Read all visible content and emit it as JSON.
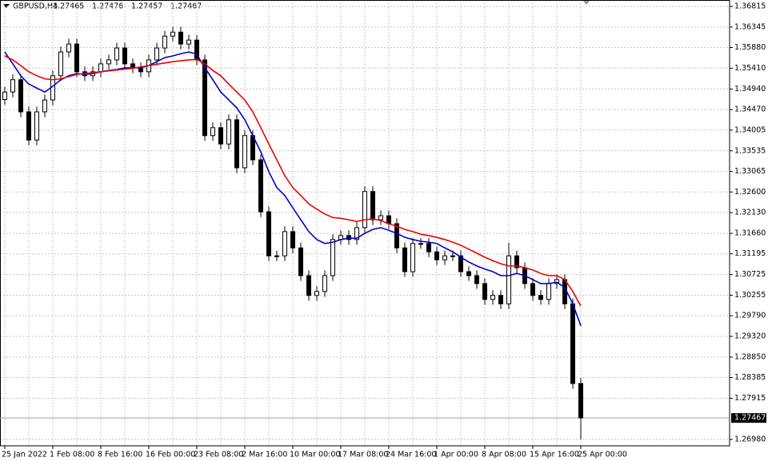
{
  "chart_data": {
    "type": "candlestick",
    "symbol": "GBPUSD,H4",
    "header_values": [
      "1.27465",
      "1.27476",
      "1.27457",
      "1.27467"
    ],
    "categories": [
      "25 Jan 2022",
      null,
      null,
      null,
      null,
      null,
      "1 Feb 08:00",
      null,
      null,
      null,
      null,
      null,
      "8 Feb 16:00",
      null,
      null,
      null,
      null,
      null,
      "16 Feb 00:00",
      null,
      null,
      null,
      null,
      null,
      "23 Feb 08:00",
      null,
      null,
      null,
      null,
      null,
      "2 Mar 16:00",
      null,
      null,
      null,
      null,
      null,
      "10 Mar 00:00",
      null,
      null,
      null,
      null,
      null,
      "17 Mar 08:00",
      null,
      null,
      null,
      null,
      null,
      "24 Mar 16:00",
      null,
      null,
      null,
      null,
      null,
      "1 Apr 00:00",
      null,
      null,
      null,
      null,
      null,
      "8 Apr 08:00",
      null,
      null,
      null,
      null,
      null,
      "15 Apr 16:00",
      null,
      null,
      null,
      null,
      null,
      "25 Apr 00:00"
    ],
    "open": [
      1.347,
      1.3487,
      1.3515,
      1.3442,
      1.3378,
      1.3442,
      1.3469,
      1.3524,
      1.3578,
      1.3596,
      1.3533,
      1.3524,
      1.3533,
      1.3551,
      1.356,
      1.3587,
      1.3551,
      1.3542,
      1.3533,
      1.356,
      1.3587,
      1.3614,
      1.3623,
      1.3596,
      1.3605,
      1.356,
      1.3388,
      1.3406,
      1.3369,
      1.3424,
      1.3315,
      1.3388,
      1.3333,
      1.3215,
      1.3115,
      1.3115,
      1.317,
      1.3133,
      1.307,
      1.3025,
      1.3034,
      1.307,
      1.3152,
      1.3161,
      1.3152,
      1.3179,
      1.3261,
      1.3197,
      1.3206,
      1.3188,
      1.3133,
      1.3079,
      1.3143,
      1.3143,
      1.3124,
      1.3106,
      1.3115,
      1.3115,
      1.3079,
      1.307,
      1.3052,
      1.3016,
      1.3025,
      1.3006,
      1.3115,
      1.3088,
      1.3052,
      1.3025,
      1.3016,
      1.3052,
      1.3061,
      1.3006,
      1.2825
    ],
    "high": [
      1.3499,
      1.3527,
      1.3527,
      1.3454,
      1.3454,
      1.3481,
      1.3536,
      1.359,
      1.3608,
      1.3608,
      1.3545,
      1.3545,
      1.3563,
      1.3572,
      1.3599,
      1.3599,
      1.3563,
      1.3554,
      1.3572,
      1.3599,
      1.3626,
      1.3635,
      1.3635,
      1.3617,
      1.3617,
      1.3572,
      1.3418,
      1.3418,
      1.3436,
      1.3436,
      1.34,
      1.34,
      1.3345,
      1.3227,
      1.3127,
      1.3182,
      1.3182,
      1.3145,
      1.3082,
      1.3046,
      1.3082,
      1.3164,
      1.3173,
      1.3173,
      1.3191,
      1.3273,
      1.3273,
      1.3218,
      1.3218,
      1.32,
      1.3145,
      1.3155,
      1.3155,
      1.3155,
      1.3136,
      1.3127,
      1.3127,
      1.3127,
      1.3091,
      1.3082,
      1.3064,
      1.3037,
      1.3037,
      1.3145,
      1.3127,
      1.31,
      1.3064,
      1.3037,
      1.3064,
      1.3073,
      1.3073,
      1.3018,
      1.2837
    ],
    "low": [
      1.3458,
      1.3475,
      1.343,
      1.3366,
      1.3366,
      1.343,
      1.3457,
      1.3512,
      1.3566,
      1.3521,
      1.3512,
      1.3512,
      1.3521,
      1.3539,
      1.3548,
      1.3539,
      1.353,
      1.3521,
      1.3521,
      1.3548,
      1.3575,
      1.3602,
      1.3584,
      1.3584,
      1.3548,
      1.3376,
      1.3376,
      1.3357,
      1.3357,
      1.3303,
      1.3303,
      1.3321,
      1.3203,
      1.3103,
      1.3103,
      1.3103,
      1.3121,
      1.3058,
      1.3013,
      1.3013,
      1.3022,
      1.3058,
      1.314,
      1.314,
      1.314,
      1.3167,
      1.3185,
      1.3185,
      1.3176,
      1.3121,
      1.3067,
      1.3067,
      1.3131,
      1.3112,
      1.3094,
      1.3094,
      1.3103,
      1.3067,
      1.3058,
      1.304,
      1.3004,
      1.3004,
      1.2994,
      1.2994,
      1.3076,
      1.304,
      1.3013,
      1.3004,
      1.3004,
      1.304,
      1.2994,
      1.2813,
      1.2698
    ],
    "close": [
      1.3487,
      1.3515,
      1.3442,
      1.3378,
      1.3442,
      1.3469,
      1.3524,
      1.3578,
      1.3596,
      1.3533,
      1.3524,
      1.3533,
      1.3551,
      1.356,
      1.3587,
      1.3551,
      1.3542,
      1.3533,
      1.356,
      1.3587,
      1.3614,
      1.3623,
      1.3596,
      1.3605,
      1.356,
      1.3388,
      1.3406,
      1.3369,
      1.3424,
      1.3315,
      1.3388,
      1.3333,
      1.3215,
      1.3115,
      1.3115,
      1.317,
      1.3133,
      1.307,
      1.3025,
      1.3034,
      1.307,
      1.3152,
      1.3161,
      1.3152,
      1.3179,
      1.3261,
      1.3197,
      1.3206,
      1.3188,
      1.3133,
      1.3079,
      1.3143,
      1.3143,
      1.3124,
      1.3106,
      1.3115,
      1.3115,
      1.3079,
      1.307,
      1.3052,
      1.3016,
      1.3025,
      1.3006,
      1.3115,
      1.3088,
      1.3052,
      1.3025,
      1.3016,
      1.3052,
      1.3061,
      1.3006,
      1.2825,
      1.2747
    ],
    "up_color": "#ffffff",
    "down_color": "#000000",
    "wick_color": "#000000",
    "lines": [
      {
        "color": "#0000cc",
        "values": [
          1.3578,
          1.3551,
          1.3524,
          1.3505,
          1.3496,
          1.3487,
          1.35,
          1.3515,
          1.3524,
          1.3529,
          1.3527,
          1.3529,
          1.3533,
          1.3536,
          1.3538,
          1.3542,
          1.3542,
          1.3542,
          1.3547,
          1.3556,
          1.3565,
          1.3569,
          1.3574,
          1.3578,
          1.3573,
          1.3542,
          1.3515,
          1.3487,
          1.3469,
          1.3451,
          1.3424,
          1.3388,
          1.3351,
          1.3306,
          1.327,
          1.3252,
          1.3224,
          1.3197,
          1.317,
          1.3152,
          1.3143,
          1.3146,
          1.3152,
          1.3155,
          1.3155,
          1.3166,
          1.3175,
          1.3179,
          1.3173,
          1.3166,
          1.3157,
          1.3152,
          1.3148,
          1.3146,
          1.3143,
          1.3133,
          1.3124,
          1.3112,
          1.3101,
          1.3092,
          1.3085,
          1.3079,
          1.307,
          1.307,
          1.3075,
          1.307,
          1.3061,
          1.3052,
          1.3052,
          1.3055,
          1.3043,
          1.3006,
          1.2956
        ]
      },
      {
        "color": "#ee0000",
        "values": [
          1.3569,
          1.356,
          1.3547,
          1.3533,
          1.3524,
          1.3517,
          1.3515,
          1.3517,
          1.3522,
          1.3527,
          1.3529,
          1.3531,
          1.3533,
          1.3535,
          1.3537,
          1.3539,
          1.3541,
          1.3544,
          1.3547,
          1.355,
          1.3553,
          1.3556,
          1.3558,
          1.356,
          1.3561,
          1.3551,
          1.3536,
          1.3524,
          1.3505,
          1.3487,
          1.3469,
          1.3442,
          1.3406,
          1.3369,
          1.3333,
          1.3297,
          1.327,
          1.3252,
          1.3233,
          1.3221,
          1.321,
          1.3202,
          1.32,
          1.3197,
          1.3193,
          1.3197,
          1.3199,
          1.3195,
          1.3188,
          1.3182,
          1.3175,
          1.317,
          1.3164,
          1.3161,
          1.3157,
          1.3152,
          1.3146,
          1.3139,
          1.313,
          1.3121,
          1.3112,
          1.3104,
          1.3097,
          1.3092,
          1.3092,
          1.3088,
          1.3083,
          1.3075,
          1.307,
          1.307,
          1.3061,
          1.3034,
          1.3001
        ]
      }
    ],
    "current_price": 1.27467,
    "ylim": [
      1.26835,
      1.3696
    ],
    "yticks": [
      1.36815,
      1.36345,
      {
        "value": 1.3588,
        "label": "1.35880"
      },
      {
        "value": 1.3541,
        "label": "1.35410"
      },
      {
        "value": 1.3494,
        "label": "1.34940"
      },
      {
        "value": 1.3447,
        "label": "1.34470"
      },
      1.34005,
      1.33535,
      1.33065,
      {
        "value": 1.326,
        "label": "1.32600"
      },
      {
        "value": 1.3213,
        "label": "1.32130"
      },
      {
        "value": 1.3166,
        "label": "1.31660"
      },
      1.31195,
      1.30725,
      1.30255,
      {
        "value": 1.2979,
        "label": "1.29790"
      },
      {
        "value": 1.2932,
        "label": "1.29320"
      },
      {
        "value": 1.2885,
        "label": "1.28850"
      },
      1.28385,
      1.27915,
      {
        "value": 1.2698,
        "label": "1.26980"
      }
    ],
    "grid": true
  }
}
